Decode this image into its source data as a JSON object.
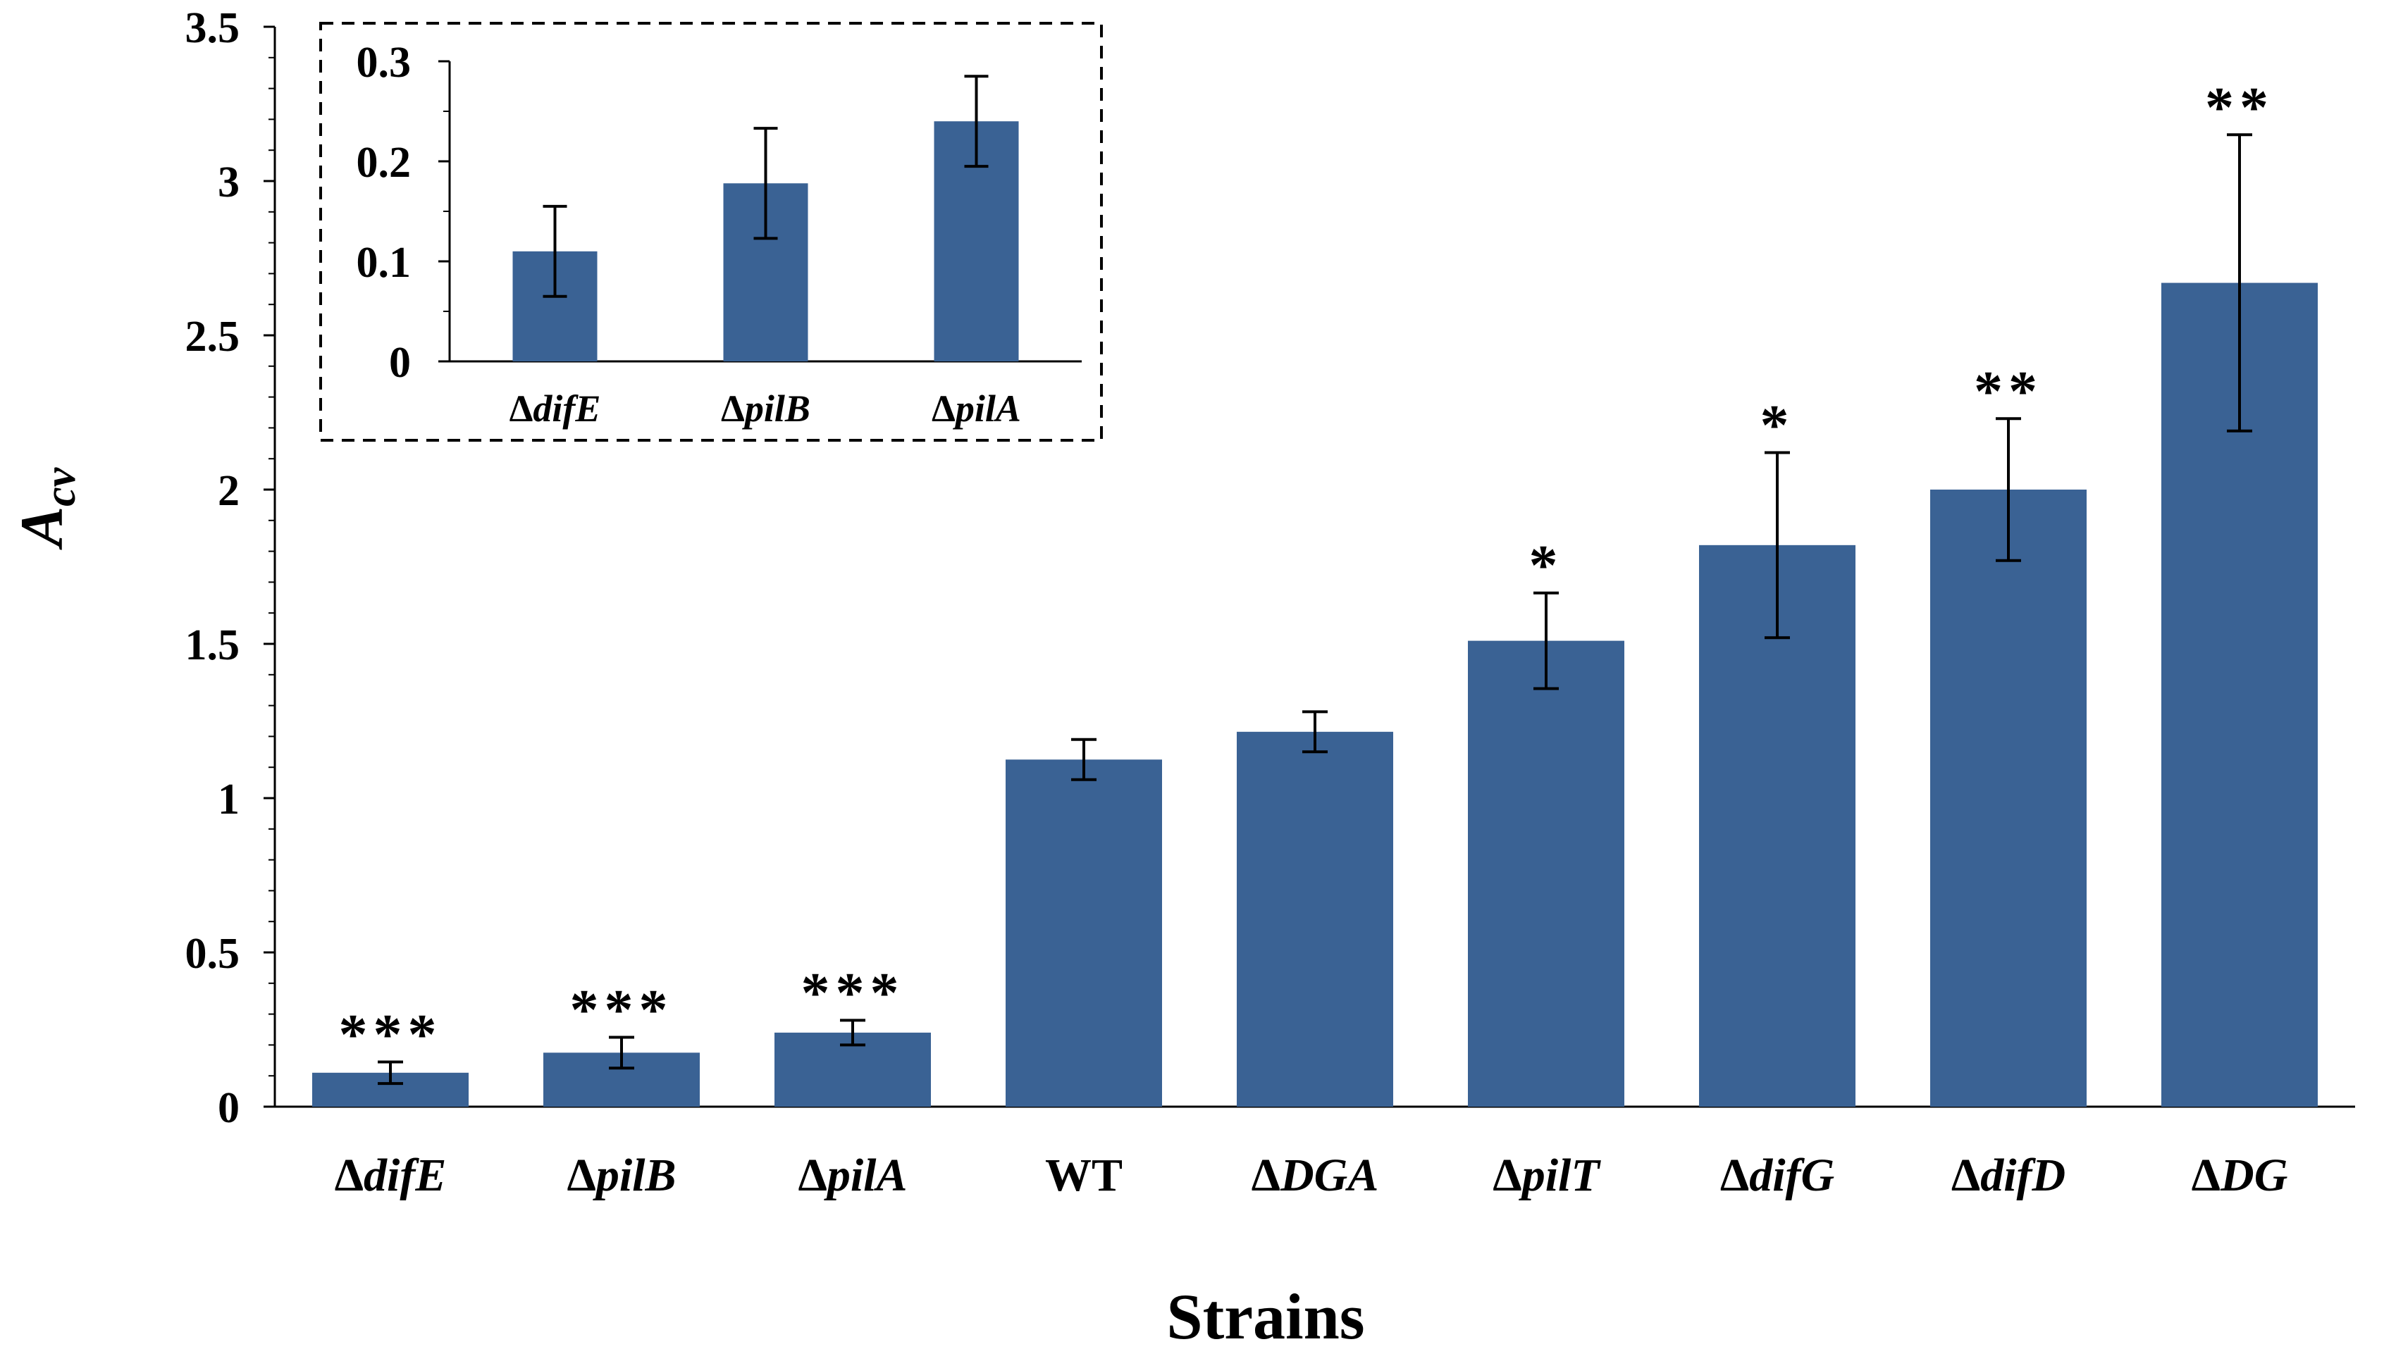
{
  "chart_data": [
    {
      "type": "bar",
      "role": "main",
      "categories": [
        "ΔdifE",
        "ΔpilB",
        "ΔpilA",
        "WT",
        "ΔDGA",
        "ΔpilT",
        "ΔdifG",
        "ΔdifD",
        "ΔDG"
      ],
      "category_prefix": "Δ",
      "category_names": [
        "difE",
        "pilB",
        "pilA",
        "WT",
        "DGA",
        "pilT",
        "difG",
        "difD",
        "DG"
      ],
      "category_has_prefix": [
        true,
        true,
        true,
        false,
        true,
        true,
        true,
        true,
        true
      ],
      "series": [
        {
          "name": "Acv",
          "values": [
            0.11,
            0.175,
            0.24,
            1.125,
            1.215,
            1.51,
            1.82,
            2.0,
            2.67
          ],
          "error": [
            0.035,
            0.05,
            0.04,
            0.065,
            0.065,
            0.155,
            0.3,
            0.23,
            0.48
          ],
          "color": "#3a6294"
        }
      ],
      "significance": [
        "***",
        "***",
        "***",
        "",
        "",
        "*",
        "*",
        "**",
        "**"
      ],
      "xlabel": "Strains",
      "ylabel": "A",
      "ylabel_sub": "cv",
      "ylim": [
        0,
        3.5
      ],
      "yticks": [
        0,
        0.5,
        1,
        1.5,
        2,
        2.5,
        3,
        3.5
      ],
      "ytick_labels": [
        "0",
        "0.5",
        "1",
        "1.5",
        "2",
        "2.5",
        "3",
        "3.5"
      ],
      "grid": false
    },
    {
      "type": "bar",
      "role": "inset",
      "placement": "top-left",
      "border": "dashed",
      "categories": [
        "ΔdifE",
        "ΔpilB",
        "ΔpilA"
      ],
      "category_prefix": "Δ",
      "category_names": [
        "difE",
        "pilB",
        "pilA"
      ],
      "series": [
        {
          "name": "Acv",
          "values": [
            0.11,
            0.178,
            0.24
          ],
          "error": [
            0.045,
            0.055,
            0.045
          ],
          "color": "#3a6294"
        }
      ],
      "ylim": [
        0,
        0.3
      ],
      "yticks": [
        0,
        0.1,
        0.2,
        0.3
      ],
      "ytick_labels": [
        "0",
        "0.1",
        "0.2",
        "0.3"
      ],
      "grid": false
    }
  ]
}
